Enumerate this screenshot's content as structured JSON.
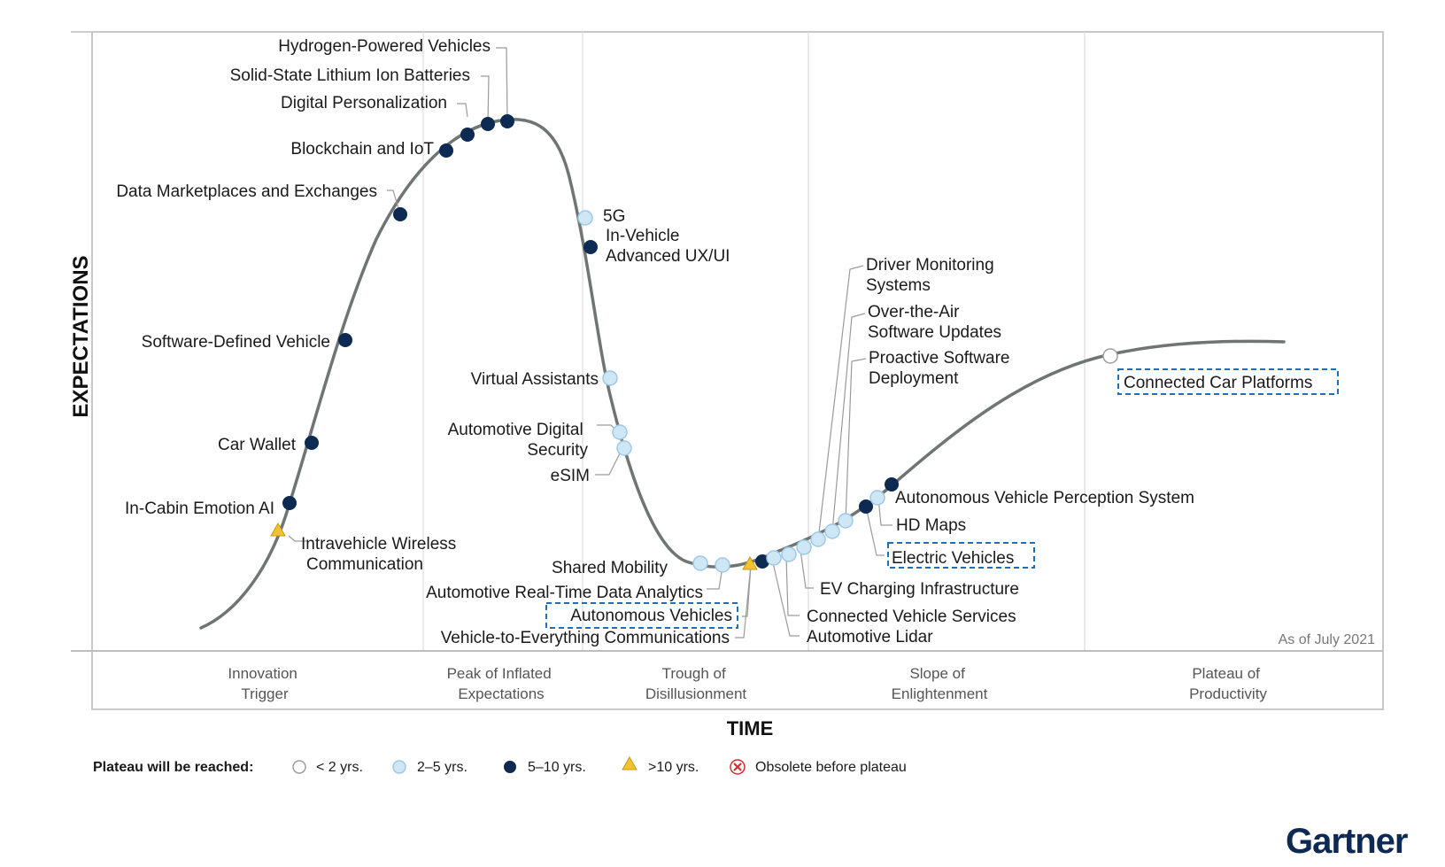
{
  "chart_data": {
    "type": "scatter",
    "subtitle": "As of July 2021",
    "xlabel": "TIME",
    "ylabel": "EXPECTATIONS",
    "phases": [
      {
        "line1": "Innovation",
        "line2": "Trigger"
      },
      {
        "line1": "Peak of Inflated",
        "line2": "Expectations"
      },
      {
        "line1": "Trough of",
        "line2": "Disillusionment"
      },
      {
        "line1": "Slope of",
        "line2": "Enlightenment"
      },
      {
        "line1": "Plateau of",
        "line2": "Productivity"
      }
    ],
    "legend": {
      "title": "Plateau will be reached:",
      "items": [
        {
          "key": "lt2",
          "label": "< 2 yrs."
        },
        {
          "key": "2to5",
          "label": "2–5 yrs."
        },
        {
          "key": "5to10",
          "label": "5–10 yrs."
        },
        {
          "key": "gt10",
          "label": ">10 yrs."
        },
        {
          "key": "obsolete",
          "label": "Obsolete before plateau"
        }
      ]
    },
    "marker_colors": {
      "lt2": "#ffffff",
      "2to5": "#cfe6f5",
      "5to10": "#0d2a52",
      "gt10": "#f2c231",
      "obsolete": "#d62b2b"
    },
    "highlight_color": "#1f6fb5",
    "technologies": [
      {
        "name": "In-Cabin Emotion AI",
        "category": "5to10",
        "highlighted": false
      },
      {
        "name": "Intravehicle Wireless Communication",
        "lines": [
          "Intravehicle Wireless",
          "Communication"
        ],
        "category": "gt10",
        "highlighted": false
      },
      {
        "name": "Car Wallet",
        "category": "5to10",
        "highlighted": false
      },
      {
        "name": "Software-Defined Vehicle",
        "category": "5to10",
        "highlighted": false
      },
      {
        "name": "Data Marketplaces and Exchanges",
        "category": "5to10",
        "highlighted": false
      },
      {
        "name": "Blockchain and IoT",
        "category": "5to10",
        "highlighted": false
      },
      {
        "name": "Digital Personalization",
        "category": "5to10",
        "highlighted": false
      },
      {
        "name": "Solid-State Lithium Ion Batteries",
        "category": "5to10",
        "highlighted": false
      },
      {
        "name": "Hydrogen-Powered Vehicles",
        "category": "5to10",
        "highlighted": false
      },
      {
        "name": "5G",
        "category": "2to5",
        "highlighted": false
      },
      {
        "name": "In-Vehicle Advanced UX/UI",
        "lines": [
          "In-Vehicle",
          "Advanced UX/UI"
        ],
        "category": "5to10",
        "highlighted": false
      },
      {
        "name": "Virtual Assistants",
        "category": "2to5",
        "highlighted": false
      },
      {
        "name": "Automotive Digital Security",
        "lines": [
          "Automotive Digital",
          "Security"
        ],
        "category": "2to5",
        "highlighted": false
      },
      {
        "name": "eSIM",
        "category": "2to5",
        "highlighted": false
      },
      {
        "name": "Shared Mobility",
        "category": "2to5",
        "highlighted": false
      },
      {
        "name": "Automotive Real-Time Data Analytics",
        "category": "2to5",
        "highlighted": false
      },
      {
        "name": "Autonomous Vehicles",
        "category": "gt10",
        "highlighted": true
      },
      {
        "name": "Vehicle-to-Everything Communications",
        "category": "5to10",
        "highlighted": false
      },
      {
        "name": "Automotive Lidar",
        "category": "2to5",
        "highlighted": false
      },
      {
        "name": "Connected Vehicle Services",
        "category": "2to5",
        "highlighted": false
      },
      {
        "name": "EV Charging Infrastructure",
        "category": "2to5",
        "highlighted": false
      },
      {
        "name": "Driver Monitoring Systems",
        "lines": [
          "Driver Monitoring",
          "Systems"
        ],
        "category": "2to5",
        "highlighted": false
      },
      {
        "name": "Over-the-Air Software Updates",
        "lines": [
          "Over-the-Air",
          "Software Updates"
        ],
        "category": "2to5",
        "highlighted": false
      },
      {
        "name": "Proactive Software Deployment",
        "lines": [
          "Proactive Software",
          "Deployment"
        ],
        "category": "2to5",
        "highlighted": false
      },
      {
        "name": "Electric Vehicles",
        "category": "5to10",
        "highlighted": true
      },
      {
        "name": "HD Maps",
        "category": "2to5",
        "highlighted": false
      },
      {
        "name": "Autonomous Vehicle Perception System",
        "category": "5to10",
        "highlighted": false
      },
      {
        "name": "Connected Car Platforms",
        "category": "lt2",
        "highlighted": true
      }
    ]
  },
  "brand": {
    "logo_text": "Gartner",
    "logo_color": "#0e2a52"
  }
}
